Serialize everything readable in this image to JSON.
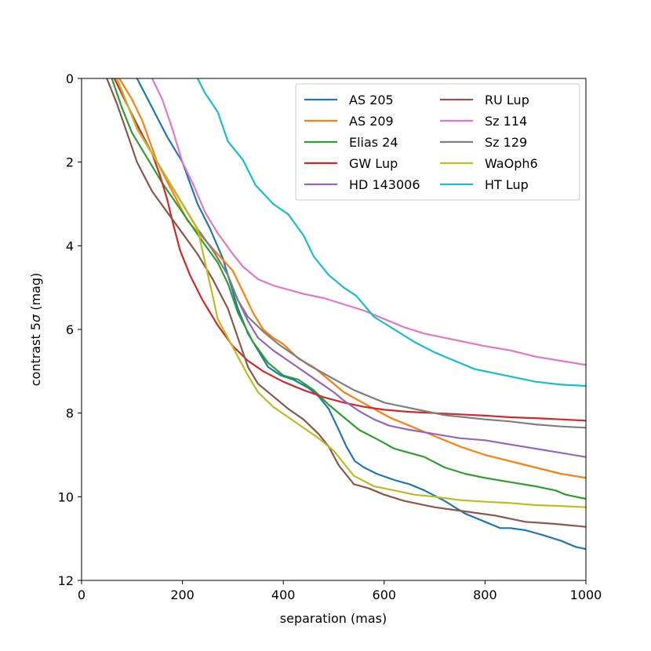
{
  "chart_data": {
    "type": "line",
    "title": "",
    "xlabel": "separation (mas)",
    "ylabel_prefix": "contrast 5",
    "ylabel_sigma": "σ",
    "ylabel_suffix": " (mag)",
    "xlim": [
      0,
      1000
    ],
    "ylim": [
      0,
      12
    ],
    "y_inverted": true,
    "grid": false,
    "legend_position": "top-right",
    "xticks": [
      0,
      200,
      400,
      600,
      800,
      1000
    ],
    "yticks": [
      0,
      2,
      4,
      6,
      8,
      10,
      12
    ],
    "series": [
      {
        "name": "AS 205",
        "color": "#1f77b4",
        "points": [
          [
            110,
            0
          ],
          [
            140,
            0.7
          ],
          [
            170,
            1.4
          ],
          [
            200,
            2.0
          ],
          [
            215,
            2.5
          ],
          [
            230,
            3.0
          ],
          [
            255,
            3.6
          ],
          [
            280,
            4.3
          ],
          [
            295,
            4.9
          ],
          [
            310,
            5.5
          ],
          [
            330,
            6.1
          ],
          [
            350,
            6.5
          ],
          [
            370,
            6.9
          ],
          [
            395,
            7.1
          ],
          [
            420,
            7.2
          ],
          [
            450,
            7.4
          ],
          [
            470,
            7.6
          ],
          [
            490,
            7.9
          ],
          [
            510,
            8.4
          ],
          [
            525,
            8.8
          ],
          [
            542,
            9.15
          ],
          [
            560,
            9.3
          ],
          [
            585,
            9.45
          ],
          [
            620,
            9.6
          ],
          [
            650,
            9.7
          ],
          [
            680,
            9.85
          ],
          [
            720,
            10.1
          ],
          [
            760,
            10.4
          ],
          [
            800,
            10.6
          ],
          [
            830,
            10.75
          ],
          [
            850,
            10.75
          ],
          [
            880,
            10.8
          ],
          [
            910,
            10.9
          ],
          [
            950,
            11.05
          ],
          [
            980,
            11.2
          ],
          [
            1000,
            11.25
          ]
        ]
      },
      {
        "name": "AS 209",
        "color": "#ff7f0e",
        "points": [
          [
            75,
            0
          ],
          [
            100,
            0.5
          ],
          [
            120,
            1.0
          ],
          [
            150,
            2.0
          ],
          [
            180,
            2.7
          ],
          [
            210,
            3.4
          ],
          [
            240,
            3.8
          ],
          [
            270,
            4.2
          ],
          [
            300,
            4.6
          ],
          [
            320,
            5.1
          ],
          [
            340,
            5.6
          ],
          [
            360,
            6.0
          ],
          [
            380,
            6.2
          ],
          [
            400,
            6.35
          ],
          [
            430,
            6.7
          ],
          [
            460,
            6.9
          ],
          [
            490,
            7.2
          ],
          [
            520,
            7.5
          ],
          [
            550,
            7.7
          ],
          [
            580,
            7.9
          ],
          [
            610,
            8.1
          ],
          [
            650,
            8.3
          ],
          [
            700,
            8.55
          ],
          [
            750,
            8.8
          ],
          [
            800,
            9.0
          ],
          [
            850,
            9.15
          ],
          [
            900,
            9.3
          ],
          [
            950,
            9.45
          ],
          [
            1000,
            9.55
          ]
        ]
      },
      {
        "name": "Elias 24",
        "color": "#2ca02c",
        "points": [
          [
            60,
            0
          ],
          [
            80,
            0.7
          ],
          [
            100,
            1.3
          ],
          [
            130,
            1.9
          ],
          [
            160,
            2.5
          ],
          [
            200,
            3.2
          ],
          [
            240,
            3.9
          ],
          [
            270,
            4.4
          ],
          [
            290,
            4.9
          ],
          [
            310,
            5.6
          ],
          [
            340,
            6.3
          ],
          [
            370,
            6.8
          ],
          [
            400,
            7.1
          ],
          [
            430,
            7.2
          ],
          [
            460,
            7.45
          ],
          [
            490,
            7.8
          ],
          [
            520,
            8.1
          ],
          [
            550,
            8.4
          ],
          [
            590,
            8.65
          ],
          [
            620,
            8.85
          ],
          [
            650,
            8.95
          ],
          [
            680,
            9.05
          ],
          [
            720,
            9.3
          ],
          [
            760,
            9.45
          ],
          [
            800,
            9.55
          ],
          [
            850,
            9.65
          ],
          [
            900,
            9.75
          ],
          [
            940,
            9.85
          ],
          [
            960,
            9.95
          ],
          [
            1000,
            10.05
          ]
        ]
      },
      {
        "name": "GW Lup",
        "color": "#d62728",
        "points": [
          [
            65,
            0
          ],
          [
            85,
            0.5
          ],
          [
            110,
            1.1
          ],
          [
            140,
            1.8
          ],
          [
            155,
            2.3
          ],
          [
            170,
            2.9
          ],
          [
            180,
            3.4
          ],
          [
            195,
            4.1
          ],
          [
            215,
            4.7
          ],
          [
            240,
            5.3
          ],
          [
            270,
            5.9
          ],
          [
            300,
            6.4
          ],
          [
            330,
            6.75
          ],
          [
            360,
            7.0
          ],
          [
            400,
            7.25
          ],
          [
            440,
            7.45
          ],
          [
            480,
            7.62
          ],
          [
            520,
            7.75
          ],
          [
            560,
            7.85
          ],
          [
            600,
            7.92
          ],
          [
            650,
            7.97
          ],
          [
            700,
            8.0
          ],
          [
            750,
            8.03
          ],
          [
            800,
            8.06
          ],
          [
            850,
            8.1
          ],
          [
            900,
            8.12
          ],
          [
            950,
            8.15
          ],
          [
            1000,
            8.18
          ]
        ]
      },
      {
        "name": "HD 143006",
        "color": "#9467bd",
        "points": [
          [
            70,
            0
          ],
          [
            90,
            0.6
          ],
          [
            110,
            1.2
          ],
          [
            140,
            1.8
          ],
          [
            170,
            2.4
          ],
          [
            200,
            3.0
          ],
          [
            230,
            3.6
          ],
          [
            260,
            4.1
          ],
          [
            290,
            4.7
          ],
          [
            310,
            5.3
          ],
          [
            330,
            5.8
          ],
          [
            350,
            6.2
          ],
          [
            380,
            6.5
          ],
          [
            410,
            6.75
          ],
          [
            440,
            7.0
          ],
          [
            470,
            7.25
          ],
          [
            500,
            7.5
          ],
          [
            520,
            7.7
          ],
          [
            550,
            7.95
          ],
          [
            580,
            8.15
          ],
          [
            610,
            8.3
          ],
          [
            650,
            8.4
          ],
          [
            700,
            8.5
          ],
          [
            750,
            8.6
          ],
          [
            800,
            8.65
          ],
          [
            850,
            8.75
          ],
          [
            900,
            8.85
          ],
          [
            950,
            8.95
          ],
          [
            1000,
            9.05
          ]
        ]
      },
      {
        "name": "RU Lup",
        "color": "#8c564b",
        "points": [
          [
            50,
            0
          ],
          [
            70,
            0.6
          ],
          [
            90,
            1.3
          ],
          [
            110,
            2.0
          ],
          [
            140,
            2.7
          ],
          [
            170,
            3.2
          ],
          [
            200,
            3.7
          ],
          [
            230,
            4.2
          ],
          [
            260,
            4.8
          ],
          [
            290,
            5.5
          ],
          [
            310,
            6.2
          ],
          [
            330,
            6.9
          ],
          [
            350,
            7.3
          ],
          [
            380,
            7.6
          ],
          [
            410,
            7.9
          ],
          [
            440,
            8.15
          ],
          [
            470,
            8.5
          ],
          [
            490,
            8.8
          ],
          [
            510,
            9.25
          ],
          [
            540,
            9.7
          ],
          [
            570,
            9.8
          ],
          [
            600,
            9.95
          ],
          [
            640,
            10.1
          ],
          [
            700,
            10.25
          ],
          [
            760,
            10.35
          ],
          [
            820,
            10.45
          ],
          [
            880,
            10.6
          ],
          [
            940,
            10.65
          ],
          [
            1000,
            10.72
          ]
        ]
      },
      {
        "name": "Sz 114",
        "color": "#e377c2",
        "points": [
          [
            140,
            0
          ],
          [
            160,
            0.5
          ],
          [
            180,
            1.2
          ],
          [
            200,
            2.0
          ],
          [
            220,
            2.5
          ],
          [
            245,
            3.2
          ],
          [
            270,
            3.7
          ],
          [
            300,
            4.2
          ],
          [
            320,
            4.5
          ],
          [
            350,
            4.8
          ],
          [
            380,
            4.95
          ],
          [
            410,
            5.05
          ],
          [
            440,
            5.15
          ],
          [
            480,
            5.25
          ],
          [
            520,
            5.4
          ],
          [
            560,
            5.55
          ],
          [
            600,
            5.75
          ],
          [
            640,
            5.95
          ],
          [
            680,
            6.1
          ],
          [
            720,
            6.2
          ],
          [
            760,
            6.3
          ],
          [
            800,
            6.4
          ],
          [
            850,
            6.5
          ],
          [
            900,
            6.65
          ],
          [
            950,
            6.75
          ],
          [
            1000,
            6.85
          ]
        ]
      },
      {
        "name": "Sz 129",
        "color": "#7f7f7f",
        "points": [
          [
            70,
            0
          ],
          [
            90,
            0.6
          ],
          [
            110,
            1.2
          ],
          [
            140,
            1.8
          ],
          [
            170,
            2.4
          ],
          [
            200,
            3.0
          ],
          [
            230,
            3.6
          ],
          [
            260,
            4.1
          ],
          [
            290,
            4.7
          ],
          [
            310,
            5.3
          ],
          [
            330,
            5.7
          ],
          [
            360,
            6.05
          ],
          [
            390,
            6.35
          ],
          [
            420,
            6.6
          ],
          [
            450,
            6.85
          ],
          [
            480,
            7.05
          ],
          [
            510,
            7.25
          ],
          [
            540,
            7.45
          ],
          [
            570,
            7.6
          ],
          [
            600,
            7.75
          ],
          [
            640,
            7.85
          ],
          [
            680,
            7.95
          ],
          [
            720,
            8.05
          ],
          [
            760,
            8.1
          ],
          [
            800,
            8.15
          ],
          [
            850,
            8.2
          ],
          [
            900,
            8.27
          ],
          [
            950,
            8.32
          ],
          [
            1000,
            8.35
          ]
        ]
      },
      {
        "name": "WaOph6",
        "color": "#bcbd22",
        "points": [
          [
            70,
            0
          ],
          [
            90,
            0.6
          ],
          [
            110,
            1.2
          ],
          [
            140,
            1.8
          ],
          [
            170,
            2.4
          ],
          [
            200,
            3.0
          ],
          [
            230,
            3.6
          ],
          [
            245,
            4.4
          ],
          [
            260,
            5.2
          ],
          [
            270,
            5.75
          ],
          [
            290,
            6.2
          ],
          [
            310,
            6.65
          ],
          [
            330,
            7.1
          ],
          [
            350,
            7.5
          ],
          [
            380,
            7.85
          ],
          [
            410,
            8.1
          ],
          [
            440,
            8.35
          ],
          [
            470,
            8.6
          ],
          [
            500,
            8.9
          ],
          [
            540,
            9.5
          ],
          [
            580,
            9.75
          ],
          [
            620,
            9.85
          ],
          [
            660,
            9.95
          ],
          [
            700,
            10.0
          ],
          [
            750,
            10.08
          ],
          [
            800,
            10.12
          ],
          [
            850,
            10.15
          ],
          [
            900,
            10.2
          ],
          [
            950,
            10.22
          ],
          [
            1000,
            10.25
          ]
        ]
      },
      {
        "name": "HT Lup",
        "color": "#17becf",
        "points": [
          [
            230,
            0
          ],
          [
            245,
            0.35
          ],
          [
            270,
            0.8
          ],
          [
            290,
            1.5
          ],
          [
            320,
            1.95
          ],
          [
            345,
            2.55
          ],
          [
            380,
            3.0
          ],
          [
            410,
            3.25
          ],
          [
            440,
            3.75
          ],
          [
            460,
            4.25
          ],
          [
            490,
            4.7
          ],
          [
            520,
            5.0
          ],
          [
            545,
            5.2
          ],
          [
            580,
            5.7
          ],
          [
            620,
            6.0
          ],
          [
            660,
            6.3
          ],
          [
            700,
            6.55
          ],
          [
            740,
            6.75
          ],
          [
            780,
            6.95
          ],
          [
            820,
            7.05
          ],
          [
            860,
            7.15
          ],
          [
            900,
            7.25
          ],
          [
            950,
            7.32
          ],
          [
            1000,
            7.35
          ]
        ]
      }
    ]
  }
}
